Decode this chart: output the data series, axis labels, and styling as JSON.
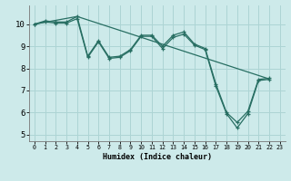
{
  "xlabel": "Humidex (Indice chaleur)",
  "background_color": "#cdeaea",
  "grid_color": "#add4d4",
  "line_color": "#276e62",
  "xlim": [
    -0.5,
    23.5
  ],
  "ylim": [
    4.7,
    10.85
  ],
  "xticks": [
    0,
    1,
    2,
    3,
    4,
    5,
    6,
    7,
    8,
    9,
    10,
    11,
    12,
    13,
    14,
    15,
    16,
    17,
    18,
    19,
    20,
    21,
    22,
    23
  ],
  "yticks": [
    5,
    6,
    7,
    8,
    9,
    10
  ],
  "series1_x": [
    0,
    1,
    2,
    3,
    4,
    5,
    6,
    7,
    8,
    9,
    10,
    11,
    12,
    13,
    14,
    15,
    16,
    17,
    18,
    19,
    20,
    21,
    22
  ],
  "series1_y": [
    10.0,
    10.15,
    10.1,
    10.1,
    10.35,
    8.55,
    9.25,
    8.5,
    8.55,
    8.85,
    9.5,
    9.5,
    9.0,
    9.5,
    9.65,
    9.1,
    8.9,
    7.3,
    6.0,
    5.55,
    6.05,
    7.5,
    7.55
  ],
  "series2_x": [
    0,
    1,
    2,
    3,
    4,
    5,
    6,
    7,
    8,
    9,
    10,
    11,
    12,
    13,
    14,
    15,
    16,
    17,
    18,
    19,
    20,
    21,
    22
  ],
  "series2_y": [
    10.0,
    10.1,
    10.05,
    10.05,
    10.25,
    8.5,
    9.2,
    8.45,
    8.5,
    8.8,
    9.45,
    9.45,
    8.9,
    9.4,
    9.55,
    9.05,
    8.85,
    7.2,
    5.95,
    5.3,
    5.95,
    7.45,
    7.5
  ],
  "trend_x": [
    0,
    4,
    22
  ],
  "trend_y": [
    10.0,
    10.35,
    7.52
  ],
  "xlabel_fontsize": 6.0,
  "tick_fontsize_x": 4.8,
  "tick_fontsize_y": 6.5
}
